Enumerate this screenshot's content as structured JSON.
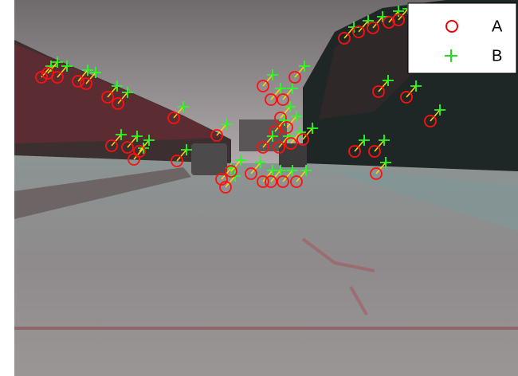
{
  "legend": {
    "items": [
      {
        "label": "A"
      },
      {
        "label": "B"
      }
    ]
  }
}
